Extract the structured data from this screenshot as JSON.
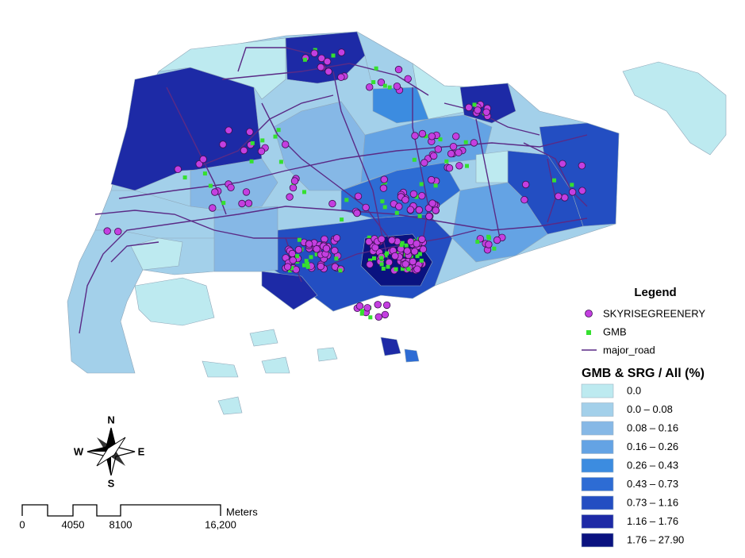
{
  "legend": {
    "title": "Legend",
    "items": [
      {
        "label": "SKYRISEGREENERY",
        "color": "#c43fe0"
      },
      {
        "label": "GMB",
        "color": "#35e02f"
      },
      {
        "label": "major_road",
        "color": "#5a2a86"
      }
    ]
  },
  "classification": {
    "title": "GMB & SRG / All (%)",
    "classes": [
      {
        "label": "0.0",
        "color": "#bdeaf0"
      },
      {
        "label": "0.0 – 0.08",
        "color": "#a3d0ea"
      },
      {
        "label": "0.08 – 0.16",
        "color": "#86b8e6"
      },
      {
        "label": "0.16 – 0.26",
        "color": "#64a3e4"
      },
      {
        "label": "0.26 – 0.43",
        "color": "#3c8ce0"
      },
      {
        "label": "0.43 – 0.73",
        "color": "#2d6cd4"
      },
      {
        "label": "0.73 – 1.16",
        "color": "#234ec2"
      },
      {
        "label": "1.16 – 1.76",
        "color": "#1d2aa6"
      },
      {
        "label": "1.76 – 27.90",
        "color": "#0a1280"
      }
    ]
  },
  "compass": {
    "n": "N",
    "s": "S",
    "e": "E",
    "w": "W"
  },
  "scale_bar": {
    "unit": "Meters",
    "labels": [
      "0",
      "4050",
      "8100",
      "16,200"
    ]
  }
}
